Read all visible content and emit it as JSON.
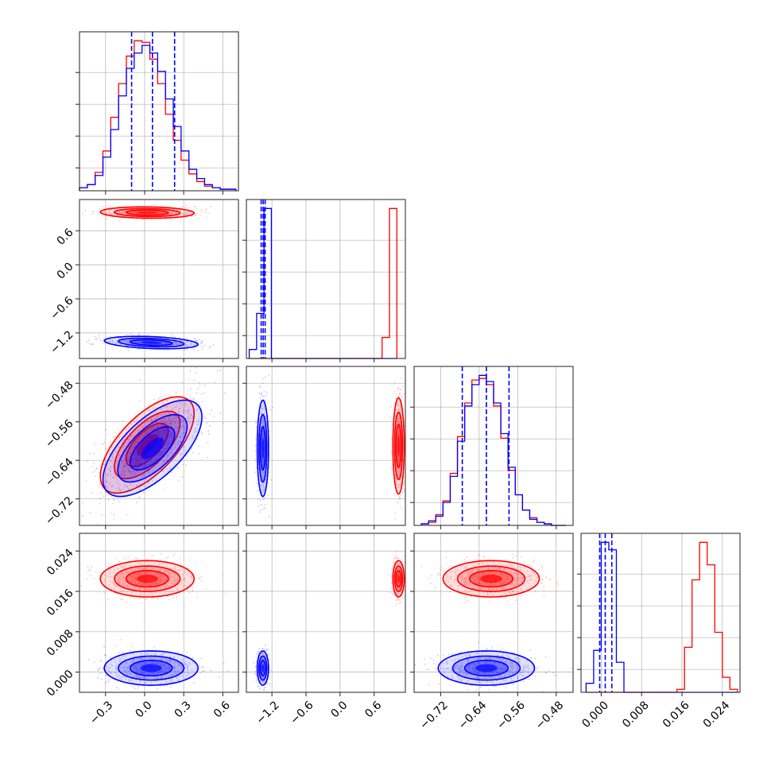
{
  "chart_data": {
    "type": "corner",
    "parameters": 4,
    "colors": {
      "series_a": "#0000ff",
      "series_b": "#ff0000"
    },
    "grid": true,
    "axes_ticks": [
      {
        "ticks": [
          -0.3,
          0.0,
          0.3,
          0.6
        ],
        "labels": [
          "−0.3",
          "0.0",
          "0.3",
          "0.6"
        ],
        "range": [
          -0.5,
          0.72
        ]
      },
      {
        "ticks": [
          -1.2,
          -0.6,
          0.0,
          0.6
        ],
        "labels": [
          "−1.2",
          "−0.6",
          "0.0",
          "0.6"
        ],
        "range": [
          -1.65,
          1.15
        ]
      },
      {
        "ticks": [
          -0.72,
          -0.64,
          -0.56,
          -0.48
        ],
        "labels": [
          "−0.72",
          "−0.64",
          "−0.56",
          "−0.48"
        ],
        "range": [
          -0.775,
          -0.445
        ]
      },
      {
        "ticks": [
          0.0,
          0.008,
          0.016,
          0.024
        ],
        "labels": [
          "0.000",
          "0.008",
          "0.016",
          "0.024"
        ],
        "range": [
          -0.004,
          0.0275
        ]
      }
    ],
    "histograms": [
      {
        "param": 0,
        "bin_edges": [
          -0.5,
          -0.44,
          -0.38,
          -0.32,
          -0.26,
          -0.2,
          -0.14,
          -0.08,
          -0.02,
          0.04,
          0.1,
          0.16,
          0.22,
          0.28,
          0.34,
          0.4,
          0.46,
          0.52,
          0.58,
          0.64,
          0.7
        ],
        "series_a": [
          2,
          4,
          10,
          22,
          40,
          62,
          80,
          90,
          95,
          90,
          78,
          60,
          42,
          26,
          14,
          8,
          4,
          2,
          1,
          1
        ],
        "series_b": [
          2,
          4,
          12,
          26,
          48,
          70,
          88,
          98,
          97,
          86,
          70,
          50,
          33,
          20,
          11,
          6,
          3,
          2,
          1,
          1
        ],
        "quantiles_a": [
          -0.1,
          0.06,
          0.23
        ]
      },
      {
        "param": 1,
        "bin_edges": [
          -1.6,
          -1.47,
          -1.34,
          -1.21,
          -1.08,
          -0.95,
          -0.82,
          -0.69,
          -0.56,
          -0.43,
          -0.3,
          -0.17,
          -0.04,
          0.09,
          0.22,
          0.35,
          0.48,
          0.61,
          0.74,
          0.87,
          1.0
        ],
        "series_a": [
          6,
          30,
          100,
          0,
          0,
          0,
          0,
          0,
          0,
          0,
          0,
          0,
          0,
          0,
          0,
          0,
          0,
          0,
          0,
          0
        ],
        "series_b": [
          0,
          0,
          0,
          0,
          0,
          0,
          0,
          0,
          0,
          0,
          0,
          0,
          0,
          0,
          0,
          0,
          0,
          0,
          14,
          100
        ],
        "quantiles_a": [
          -1.39,
          -1.355,
          -1.32
        ]
      },
      {
        "param": 2,
        "bin_edges": [
          -0.76,
          -0.745,
          -0.73,
          -0.715,
          -0.7,
          -0.685,
          -0.67,
          -0.655,
          -0.64,
          -0.625,
          -0.61,
          -0.595,
          -0.58,
          -0.565,
          -0.55,
          -0.535,
          -0.52,
          -0.505,
          -0.49,
          -0.475,
          -0.46
        ],
        "series_a": [
          1,
          3,
          6,
          15,
          32,
          55,
          78,
          92,
          98,
          94,
          80,
          60,
          38,
          20,
          10,
          4,
          2,
          1,
          0,
          0
        ],
        "series_b": [
          1,
          2,
          7,
          16,
          34,
          58,
          80,
          95,
          96,
          92,
          78,
          57,
          36,
          20,
          10,
          5,
          2,
          1,
          0,
          0
        ],
        "quantiles_a": [
          -0.675,
          -0.625,
          -0.578
        ]
      },
      {
        "param": 3,
        "bin_edges": [
          -0.003,
          -0.0015,
          0.0,
          0.0015,
          0.003,
          0.0045,
          0.006,
          0.0075,
          0.009,
          0.0105,
          0.012,
          0.0135,
          0.015,
          0.0165,
          0.018,
          0.0195,
          0.021,
          0.0225,
          0.024,
          0.0255,
          0.027
        ],
        "series_a": [
          6,
          28,
          100,
          95,
          20,
          0,
          0,
          0,
          0,
          0,
          0,
          0,
          0,
          0,
          0,
          0,
          0,
          0,
          0,
          0
        ],
        "series_b": [
          0,
          0,
          0,
          0,
          0,
          0,
          0,
          0,
          0,
          0,
          0,
          0,
          2,
          30,
          75,
          100,
          85,
          40,
          10,
          2
        ],
        "quantiles_a": [
          -0.0003,
          0.0008,
          0.0021
        ]
      }
    ],
    "density_panels": [
      {
        "x": 0,
        "y": 1,
        "series_a": {
          "mean": [
            0.05,
            -1.37
          ],
          "std": [
            0.18,
            0.055
          ],
          "corr": -0.3
        },
        "series_b": {
          "mean": [
            0.02,
            0.92
          ],
          "std": [
            0.18,
            0.05
          ],
          "corr": -0.1
        }
      },
      {
        "x": 0,
        "y": 2,
        "series_a": {
          "mean": [
            0.06,
            -0.615
          ],
          "std": [
            0.19,
            0.05
          ],
          "corr": 0.65
        },
        "series_b": {
          "mean": [
            0.02,
            -0.608
          ],
          "std": [
            0.18,
            0.05
          ],
          "corr": 0.65
        }
      },
      {
        "x": 1,
        "y": 2,
        "series_a": {
          "mean": [
            -1.36,
            -0.615
          ],
          "std": [
            0.05,
            0.05
          ],
          "corr": 0.0
        },
        "series_b": {
          "mean": [
            1.03,
            -0.61
          ],
          "std": [
            0.05,
            0.05
          ],
          "corr": 0.0
        }
      },
      {
        "x": 0,
        "y": 3,
        "series_a": {
          "mean": [
            0.05,
            0.0008
          ],
          "std": [
            0.18,
            0.0017
          ],
          "corr": 0.0
        },
        "series_b": {
          "mean": [
            0.02,
            0.0185
          ],
          "std": [
            0.18,
            0.0018
          ],
          "corr": 0.0
        }
      },
      {
        "x": 1,
        "y": 3,
        "series_a": {
          "mean": [
            -1.36,
            0.0008
          ],
          "std": [
            0.05,
            0.0017
          ],
          "corr": 0.0
        },
        "series_b": {
          "mean": [
            1.03,
            0.0185
          ],
          "std": [
            0.05,
            0.0018
          ],
          "corr": 0.0
        }
      },
      {
        "x": 2,
        "y": 3,
        "series_a": {
          "mean": [
            -0.625,
            0.0008
          ],
          "std": [
            0.05,
            0.0017
          ],
          "corr": 0.0
        },
        "series_b": {
          "mean": [
            -0.615,
            0.0185
          ],
          "std": [
            0.05,
            0.0018
          ],
          "corr": 0.0
        }
      }
    ]
  }
}
